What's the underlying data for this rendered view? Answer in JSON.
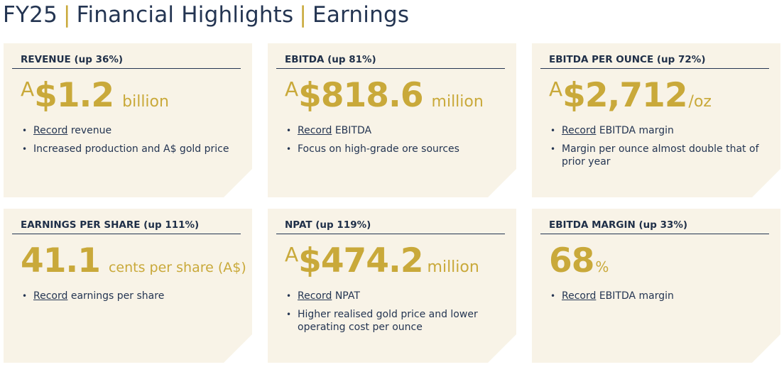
{
  "page": {
    "title_part1": "FY25",
    "separator": "|",
    "title_part2": "Financial Highlights",
    "title_part3": "Earnings"
  },
  "colors": {
    "navy": "#243552",
    "gold": "#c9a93a",
    "card_bg": "#f8f3e7"
  },
  "cards": [
    {
      "header": "REVENUE (up 36%)",
      "prefix": "A",
      "value": "$1.2",
      "unit": "billion",
      "bullets": [
        {
          "highlight": "Record",
          "text": " revenue"
        },
        {
          "highlight": "",
          "text": "Increased production and A$ gold price"
        }
      ]
    },
    {
      "header": "EBITDA (up 81%)",
      "prefix": "A",
      "value": "$818.6",
      "unit": "million",
      "bullets": [
        {
          "highlight": "Record",
          "text": " EBITDA"
        },
        {
          "highlight": "",
          "text": "Focus on high-grade ore sources"
        }
      ]
    },
    {
      "header": "EBITDA PER OUNCE (up 72%)",
      "prefix": "A",
      "value": "$2,712",
      "unit": "/oz",
      "bullets": [
        {
          "highlight": "Record",
          "text": " EBITDA margin"
        },
        {
          "highlight": "",
          "text": "Margin per ounce almost double that of prior year"
        }
      ]
    },
    {
      "header": "EARNINGS PER SHARE (up 111%)",
      "prefix": "",
      "value": "41.1",
      "unit": "cents per share (A$)",
      "bullets": [
        {
          "highlight": "Record",
          "text": " earnings per share"
        }
      ]
    },
    {
      "header": "NPAT (up 119%)",
      "prefix": "A",
      "value": "$474.2",
      "unit": "million",
      "bullets": [
        {
          "highlight": "Record",
          "text": " NPAT"
        },
        {
          "highlight": "",
          "text": "Higher realised gold price and lower operating cost per ounce"
        }
      ]
    },
    {
      "header": "EBITDA MARGIN (up 33%)",
      "prefix": "",
      "value": "68",
      "unit": "%",
      "bullets": [
        {
          "highlight": "Record",
          "text": " EBITDA margin"
        }
      ]
    }
  ]
}
